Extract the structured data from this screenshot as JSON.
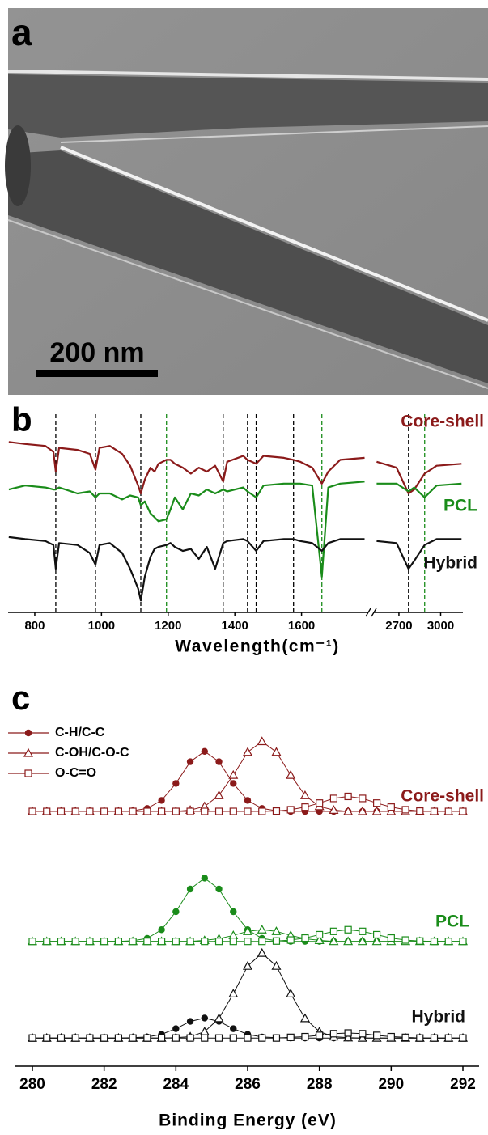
{
  "image_panel": {
    "label": "a",
    "scale_bar": "200 nm"
  },
  "chart_data": [
    {
      "type": "line",
      "panel_label": "b",
      "x_label": "Wavelength(cm⁻¹)",
      "segments": [
        {
          "xlim": [
            720,
            1800
          ],
          "xticks": [
            800,
            1000,
            1200,
            1400,
            1600
          ]
        },
        {
          "xlim": [
            2520,
            3160
          ],
          "xticks": [
            2700,
            3000
          ]
        }
      ],
      "ylim": [
        0,
        100
      ],
      "x": [
        722,
        771,
        832,
        856,
        863,
        873,
        928,
        965,
        982,
        994,
        1025,
        1062,
        1086,
        1110,
        1118,
        1130,
        1147,
        1159,
        1171,
        1195,
        1207,
        1220,
        1244,
        1268,
        1292,
        1316,
        1341,
        1365,
        1377,
        1425,
        1438,
        1464,
        1486,
        1547,
        1576,
        1596,
        1632,
        1661,
        1680,
        1716,
        1789,
        1800,
        2540,
        2683,
        2769,
        2810,
        2885,
        2971,
        3150
      ],
      "series": [
        {
          "name": "Core-shell",
          "color": "#8b1a1a",
          "values": [
            86,
            85,
            84,
            81,
            71,
            83,
            82,
            80,
            72,
            83,
            84,
            80,
            74,
            64,
            60,
            67,
            73,
            71,
            75,
            77,
            77,
            75,
            73,
            70,
            73,
            71,
            74,
            66,
            76,
            79,
            77,
            75,
            79,
            78,
            77,
            76,
            73,
            65,
            71,
            77,
            78,
            null,
            76,
            73,
            60,
            62,
            70,
            74,
            75
          ]
        },
        {
          "name": "PCL",
          "color": "#1a8c1a",
          "values": [
            62,
            64,
            63,
            62,
            62,
            63,
            60,
            61,
            58,
            60,
            60,
            57,
            59,
            58,
            54,
            56,
            50,
            48,
            46,
            47,
            52,
            58,
            52,
            60,
            59,
            62,
            60,
            62,
            61,
            63,
            61,
            58,
            64,
            65,
            65,
            65,
            64,
            18,
            63,
            65,
            66,
            null,
            65,
            65,
            61,
            63,
            58,
            64,
            65
          ]
        },
        {
          "name": "Hybrid",
          "color": "#111111",
          "values": [
            38,
            37,
            36,
            34,
            22,
            35,
            34,
            30,
            24,
            34,
            35,
            30,
            22,
            12,
            6,
            18,
            28,
            32,
            33,
            34,
            35,
            33,
            31,
            32,
            27,
            33,
            22,
            35,
            36,
            37,
            36,
            31,
            36,
            37,
            37,
            36,
            35,
            31,
            35,
            37,
            37,
            null,
            36,
            35,
            22,
            26,
            34,
            37,
            37
          ]
        }
      ],
      "reference_lines": [
        {
          "x": 863,
          "color": "#000000"
        },
        {
          "x": 982,
          "color": "#000000"
        },
        {
          "x": 1118,
          "color": "#000000"
        },
        {
          "x": 1195,
          "color": "#1a8c1a"
        },
        {
          "x": 1365,
          "color": "#000000"
        },
        {
          "x": 1438,
          "color": "#000000"
        },
        {
          "x": 1464,
          "color": "#000000"
        },
        {
          "x": 1576,
          "color": "#000000"
        },
        {
          "x": 1661,
          "color": "#1a8c1a"
        },
        {
          "x": 2769,
          "color": "#000000"
        },
        {
          "x": 2885,
          "color": "#1a8c1a"
        }
      ]
    },
    {
      "type": "scatter-line",
      "panel_label": "c",
      "x_label": "Binding Energy (eV)",
      "xlim": [
        280,
        292
      ],
      "xticks": [
        280,
        282,
        284,
        286,
        288,
        290,
        292
      ],
      "ylim": [
        0,
        100
      ],
      "legend_color": "#8b1a1a",
      "legend": [
        {
          "name": "C-H/C-C",
          "marker": "circle"
        },
        {
          "name": "C-OH/C-O-C",
          "marker": "triangle"
        },
        {
          "name": "O-C=O",
          "marker": "square"
        }
      ],
      "x": [
        280,
        280.4,
        280.8,
        281.2,
        281.6,
        282,
        282.4,
        282.8,
        283.2,
        283.6,
        284,
        284.4,
        284.8,
        285.2,
        285.6,
        286,
        286.4,
        286.8,
        287.2,
        287.6,
        288,
        288.4,
        288.8,
        289.2,
        289.6,
        290,
        290.4,
        290.8,
        291.2,
        291.6,
        292
      ],
      "groups": [
        {
          "label": "Core-shell",
          "color": "#8b1a1a",
          "series": [
            {
              "marker": "circle",
              "values": [
                75,
                75,
                75,
                75,
                75,
                75,
                75,
                75.2,
                75.9,
                78.3,
                83.4,
                89.9,
                93,
                89.9,
                83.4,
                78.3,
                75.9,
                75.2,
                75,
                75,
                75,
                75,
                75,
                75,
                75,
                75,
                75,
                75,
                75,
                75,
                75
              ]
            },
            {
              "marker": "triangle",
              "values": [
                75,
                75,
                75,
                75,
                75,
                75,
                75,
                75,
                75,
                75,
                75,
                75.4,
                76.5,
                79.8,
                85.9,
                92.8,
                96,
                92.8,
                85.9,
                79.8,
                76.5,
                75.4,
                75,
                75,
                75,
                75,
                75,
                75,
                75,
                75,
                75
              ]
            },
            {
              "marker": "square",
              "values": [
                75,
                75,
                75,
                75,
                75,
                75,
                75,
                75,
                75,
                75,
                75,
                75,
                75,
                75,
                75,
                75,
                75,
                75.1,
                75.5,
                76.3,
                77.5,
                78.9,
                79.5,
                78.9,
                77.5,
                76.3,
                75.5,
                75.1,
                75,
                75,
                75
              ]
            }
          ]
        },
        {
          "label": "PCL",
          "color": "#1a8c1a",
          "series": [
            {
              "marker": "circle",
              "values": [
                36,
                36,
                36,
                36,
                36,
                36,
                36,
                36.2,
                36.9,
                39.5,
                44.9,
                51.7,
                55,
                51.7,
                44.9,
                39.5,
                36.9,
                36.2,
                36,
                36,
                36,
                36,
                36,
                36,
                36,
                36,
                36,
                36,
                36,
                36,
                36
              ]
            },
            {
              "marker": "triangle",
              "values": [
                36,
                36,
                36,
                36,
                36,
                36,
                36,
                36,
                36,
                36,
                36,
                36,
                36.3,
                36.8,
                37.8,
                39,
                39.5,
                39,
                37.8,
                36.8,
                36.3,
                36,
                36,
                36,
                36,
                36,
                36,
                36,
                36,
                36,
                36
              ]
            },
            {
              "marker": "square",
              "values": [
                36,
                36,
                36,
                36,
                36,
                36,
                36,
                36,
                36,
                36,
                36,
                36,
                36,
                36,
                36,
                36,
                36,
                36.1,
                36.4,
                37,
                38,
                39,
                39.5,
                39,
                38,
                37,
                36.4,
                36.1,
                36,
                36,
                36
              ]
            }
          ]
        },
        {
          "label": "Hybrid",
          "color": "#111111",
          "series": [
            {
              "marker": "circle",
              "values": [
                7,
                7,
                7,
                7,
                7,
                7,
                7,
                7.1,
                7.3,
                8.1,
                9.8,
                12,
                13,
                12,
                9.8,
                8.1,
                7.3,
                7.1,
                7,
                7,
                7,
                7,
                7,
                7,
                7,
                7,
                7,
                7,
                7,
                7,
                7
              ]
            },
            {
              "marker": "triangle",
              "values": [
                7,
                7,
                7,
                7,
                7,
                7,
                7,
                7,
                7,
                7,
                7.1,
                7.4,
                8.9,
                12.9,
                20.3,
                28.6,
                32.5,
                28.6,
                20.3,
                12.9,
                8.9,
                7.4,
                7.1,
                7,
                7,
                7,
                7,
                7,
                7,
                7,
                7
              ]
            },
            {
              "marker": "square",
              "values": [
                7,
                7,
                7,
                7,
                7,
                7,
                7,
                7,
                7,
                7,
                7,
                7,
                7,
                7,
                7,
                7,
                7,
                7,
                7.2,
                7.4,
                7.8,
                8.3,
                8.5,
                8.3,
                7.8,
                7.4,
                7.2,
                7,
                7,
                7,
                7
              ]
            }
          ]
        }
      ]
    }
  ]
}
